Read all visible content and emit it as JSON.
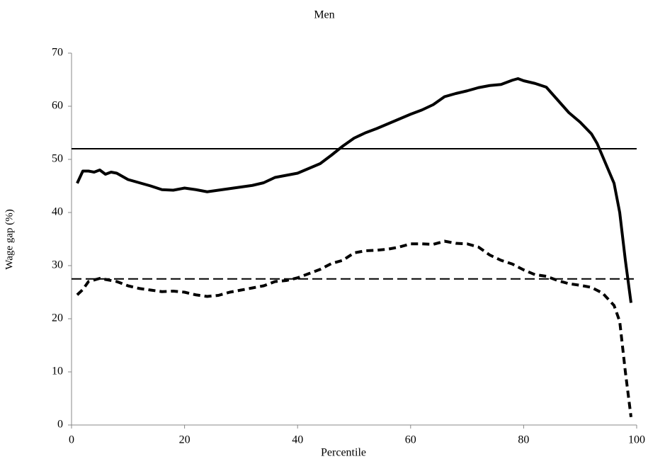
{
  "chart_data": {
    "type": "line",
    "title": "Men",
    "x_label": "Percentile",
    "y_label": "Wage gap (%)",
    "xlim": [
      0,
      100
    ],
    "xticks": [
      0,
      20,
      40,
      60,
      80,
      100
    ],
    "ylim": [
      0,
      70
    ],
    "yticks": [
      0,
      10,
      20,
      30,
      40,
      50,
      60,
      70
    ],
    "series": [
      {
        "color": "#000000",
        "style": "solid",
        "x": [
          1,
          2,
          3,
          4,
          5,
          6,
          7,
          8,
          10,
          12,
          14,
          16,
          18,
          20,
          22,
          24,
          26,
          28,
          30,
          32,
          34,
          36,
          38,
          40,
          42,
          44,
          46,
          48,
          50,
          52,
          54,
          56,
          58,
          60,
          62,
          64,
          66,
          68,
          70,
          72,
          74,
          76,
          78,
          79,
          80,
          82,
          84,
          86,
          88,
          90,
          92,
          93,
          94,
          95,
          96,
          97,
          98,
          99
        ],
        "values": [
          45.5,
          47.8,
          47.8,
          47.6,
          48,
          47.2,
          47.6,
          47.4,
          46.2,
          45.6,
          45,
          44.3,
          44.2,
          44.6,
          44.3,
          43.9,
          44.2,
          44.5,
          44.8,
          45.1,
          45.6,
          46.6,
          47,
          47.4,
          48.3,
          49.2,
          50.8,
          52.5,
          54,
          55,
          55.8,
          56.7,
          57.6,
          58.5,
          59.3,
          60.3,
          61.8,
          62.4,
          62.9,
          63.5,
          63.9,
          64.1,
          64.9,
          65.2,
          64.8,
          64.3,
          63.6,
          61.2,
          58.8,
          57,
          54.8,
          53,
          50.5,
          48,
          45.5,
          40,
          31,
          23
        ]
      },
      {
        "color": "#000000",
        "style": "dashed",
        "x": [
          1,
          2,
          3,
          5,
          8,
          10,
          12,
          14,
          16,
          18,
          20,
          22,
          24,
          26,
          28,
          30,
          32,
          34,
          36,
          38,
          40,
          42,
          44,
          46,
          48,
          50,
          52,
          54,
          56,
          58,
          60,
          62,
          64,
          66,
          68,
          70,
          72,
          74,
          76,
          78,
          80,
          82,
          84,
          86,
          88,
          90,
          92,
          94,
          96,
          97,
          98,
          99
        ],
        "values": [
          24.5,
          25.5,
          27,
          27.6,
          27,
          26.2,
          25.7,
          25.4,
          25.1,
          25.2,
          25,
          24.5,
          24.2,
          24.4,
          25,
          25.4,
          25.8,
          26.2,
          27,
          27.2,
          27.7,
          28.5,
          29.3,
          30.4,
          31,
          32.4,
          32.8,
          32.9,
          33.1,
          33.5,
          34.1,
          34.1,
          34,
          34.6,
          34.2,
          34.1,
          33.5,
          32,
          31,
          30.3,
          29.2,
          28.3,
          28,
          27.2,
          26.6,
          26.3,
          25.9,
          24.8,
          22.5,
          19.5,
          10,
          1.5
        ]
      }
    ],
    "reference_lines": [
      {
        "value": 52,
        "style": "solid",
        "color": "#000000"
      },
      {
        "value": 27.5,
        "style": "dashed",
        "color": "#000000"
      }
    ]
  }
}
